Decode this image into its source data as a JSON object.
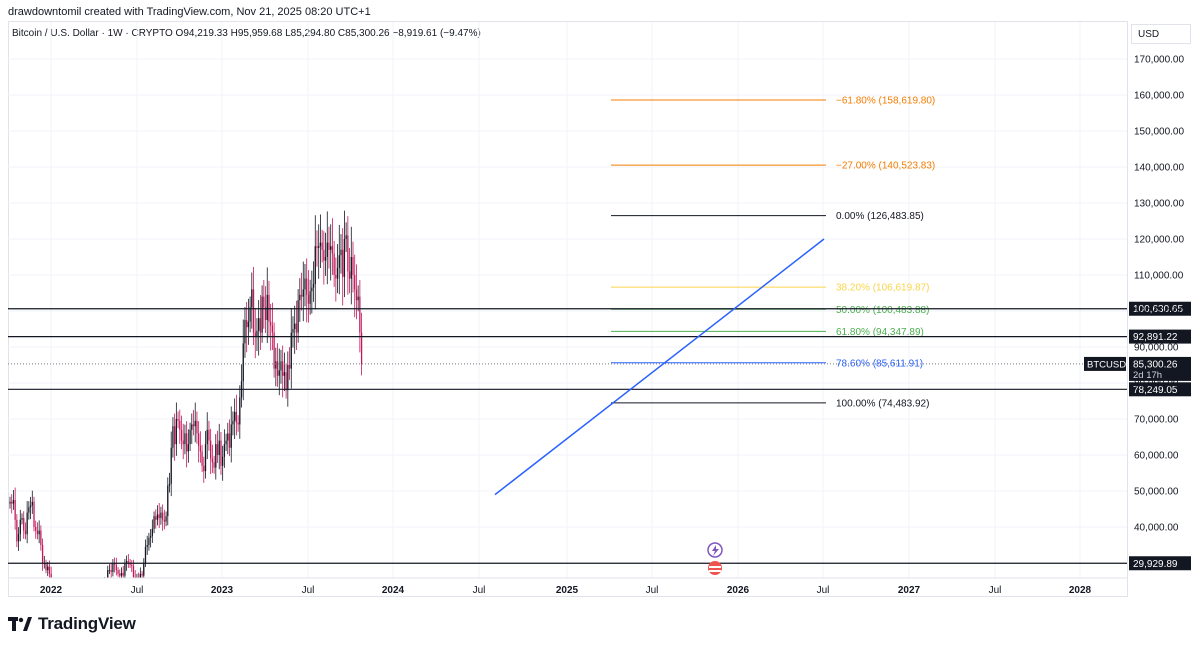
{
  "attribution": "drawdowntomil created with TradingView.com, Nov 21, 2025 08:20 UTC+1",
  "symbol_info": "Bitcoin / U.S. Dollar · 1W · CRYPTO  O94,219.33  H95,959.68  L85,294.80  C85,300.26  −8,919.61 (−9.47%)",
  "currency": "USD",
  "brand": "TradingView",
  "colors": {
    "up": "#131722",
    "down": "#c2185b",
    "trendline": "#2962ff",
    "grid": "#f0f3fa"
  },
  "chart_data": {
    "type": "candlestick",
    "symbol": "BTCUSD",
    "price_axis": [
      "170,000.00",
      "160,000.00",
      "150,000.00",
      "140,000.00",
      "130,000.00",
      "120,000.00",
      "110,000.00",
      "100,000.00",
      "90,000.00",
      "80,000.00",
      "70,000.00",
      "60,000.00",
      "50,000.00",
      "40,000.00"
    ],
    "price_values": [
      170000,
      160000,
      150000,
      140000,
      130000,
      120000,
      110000,
      100000,
      90000,
      80000,
      70000,
      60000,
      50000,
      40000
    ],
    "time_axis": [
      "2022",
      "Jul",
      "2023",
      "Jul",
      "2024",
      "Jul",
      "2025",
      "Jul",
      "2026",
      "Jul",
      "2027",
      "Jul",
      "2028"
    ],
    "fib_levels": [
      {
        "label": "−61.80% (158,619.80)",
        "value": 158619.8,
        "color": "#f57c00"
      },
      {
        "label": "−27.00% (140,523.83)",
        "value": 140523.83,
        "color": "#f57c00"
      },
      {
        "label": "0.00% (126,483.85)",
        "value": 126483.85,
        "color": "#131722"
      },
      {
        "label": "38.20% (106,619.87)",
        "value": 106619.87,
        "color": "#f9d54a"
      },
      {
        "label": "50.00% (100,483.88)",
        "value": 100483.88,
        "color": "#4caf50"
      },
      {
        "label": "61.80% (94,347.89)",
        "value": 94347.89,
        "color": "#4caf50"
      },
      {
        "label": "78.60% (85,611.91)",
        "value": 85611.91,
        "color": "#2962ff"
      },
      {
        "label": "100.00% (74,483.92)",
        "value": 74483.92,
        "color": "#131722"
      }
    ],
    "horizontal_levels": [
      {
        "label": "100,630.65",
        "value": 100630.65
      },
      {
        "label": "92,891.22",
        "value": 92891.22
      },
      {
        "label": "78,249.05",
        "value": 78249.05
      },
      {
        "label": "29,929.89",
        "value": 29929.89
      }
    ],
    "last_price": {
      "symbol": "BTCUSD",
      "price": "85,300.26",
      "countdown": "2d 17h",
      "value": 85300.26
    },
    "trendline": {
      "start": {
        "date": "2024-07",
        "price": 49000
      },
      "end": {
        "date": "2026-07",
        "price": 120000
      }
    }
  }
}
